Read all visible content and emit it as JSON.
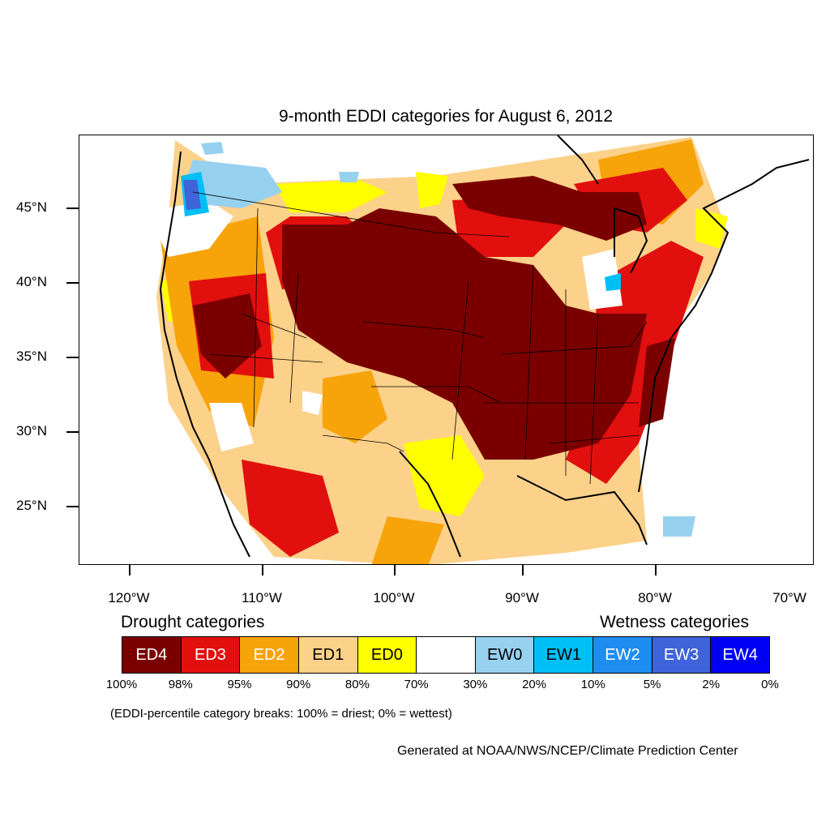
{
  "title": "9-month EDDI categories for August 6, 2012",
  "colors": {
    "ED4": "#7a0000",
    "ED3": "#e20f0f",
    "ED2": "#f7a30a",
    "ED1": "#fcd18a",
    "ED0": "#ffff00",
    "neutral": "#ffffff",
    "EW0": "#97d1f0",
    "EW1": "#00bff5",
    "EW2": "#1e8cf0",
    "EW3": "#3f63d9",
    "EW4": "#0000f5"
  },
  "axes": {
    "lat_labels": [
      "45°N",
      "40°N",
      "35°N",
      "30°N",
      "25°N"
    ],
    "lon_labels": [
      "120°W",
      "110°W",
      "100°W",
      "90°W",
      "80°W",
      "70°W"
    ]
  },
  "legend": {
    "drought_heading": "Drought categories",
    "wetness_heading": "Wetness categories",
    "categories": [
      {
        "label": "ED4",
        "color": "#7a0000",
        "text_color": "#ffffff"
      },
      {
        "label": "ED3",
        "color": "#e20f0f",
        "text_color": "#ffffff"
      },
      {
        "label": "ED2",
        "color": "#f7a30a",
        "text_color": "#ffffff"
      },
      {
        "label": "ED1",
        "color": "#fcd18a",
        "text_color": "#000000"
      },
      {
        "label": "ED0",
        "color": "#ffff00",
        "text_color": "#000000"
      },
      {
        "label": "",
        "color": "#ffffff",
        "text_color": "#000000"
      },
      {
        "label": "EW0",
        "color": "#97d1f0",
        "text_color": "#000000"
      },
      {
        "label": "EW1",
        "color": "#00bff5",
        "text_color": "#000000"
      },
      {
        "label": "EW2",
        "color": "#1e8cf0",
        "text_color": "#ffffff"
      },
      {
        "label": "EW3",
        "color": "#3f63d9",
        "text_color": "#ffffff"
      },
      {
        "label": "EW4",
        "color": "#0000f5",
        "text_color": "#ffffff"
      }
    ],
    "percentiles": [
      "100%",
      "98%",
      "95%",
      "90%",
      "80%",
      "70%",
      "30%",
      "20%",
      "10%",
      "5%",
      "2%",
      "0%"
    ],
    "note": "(EDDI-percentile category breaks: 100% = driest; 0% = wettest)"
  },
  "credit": "Generated at NOAA/NWS/NCEP/Climate Prediction Center"
}
